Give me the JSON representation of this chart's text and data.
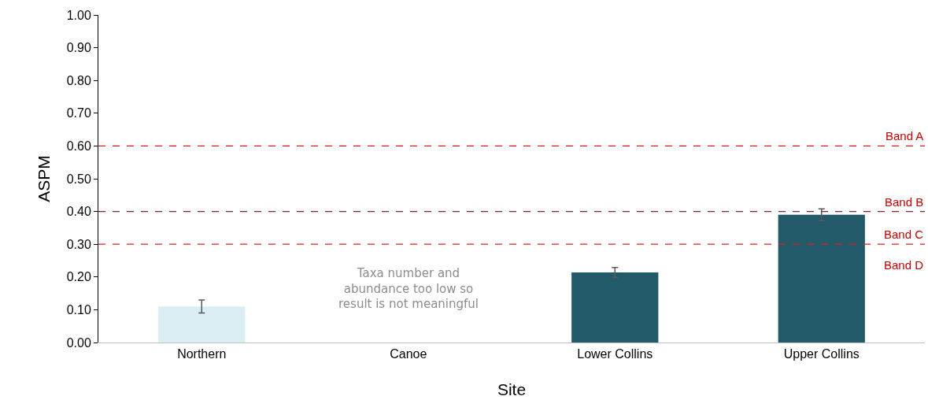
{
  "chart_data": {
    "type": "bar",
    "xlabel": "Site",
    "ylabel": "ASPM",
    "categories": [
      "Northern",
      "Canoe",
      "Lower Collins",
      "Upper Collins"
    ],
    "values": [
      0.11,
      null,
      0.214,
      0.39
    ],
    "colors": [
      "#daeef3",
      "#235a6a",
      "#235a6a",
      "#235a6a"
    ],
    "errors": [
      0.02,
      null,
      0.015,
      0.018
    ],
    "ylim": [
      0,
      1
    ],
    "yticks": [
      {
        "value": 0,
        "label": "0.00"
      },
      {
        "value": 0.1,
        "label": "0.10"
      },
      {
        "value": 0.2,
        "label": "0.20"
      },
      {
        "value": 0.3,
        "label": "0.30"
      },
      {
        "value": 0.4,
        "label": "0.40"
      },
      {
        "value": 0.5,
        "label": "0.50"
      },
      {
        "value": 0.6,
        "label": "0.60"
      },
      {
        "value": 0.7,
        "label": "0.70"
      },
      {
        "value": 0.8,
        "label": "0.80"
      },
      {
        "value": 0.9,
        "label": "0.90"
      },
      {
        "value": 1,
        "label": "1.00"
      }
    ],
    "ref_lines": [
      {
        "axis": "y",
        "value": 0.6,
        "label": "Band A",
        "color": "#e02020",
        "line_style": "dashed"
      },
      {
        "axis": "y",
        "value": 0.4,
        "label": "Band B",
        "color": "#7a2a2a",
        "line_style": "dashed"
      },
      {
        "axis": "y",
        "value": 0.3,
        "label": "Band C",
        "color": "#e02020",
        "line_style": "dashed"
      }
    ],
    "annotations": [
      "Band D",
      "Taxa number and\nabundance too low so\nresult is not meaningful"
    ],
    "grid": false
  }
}
